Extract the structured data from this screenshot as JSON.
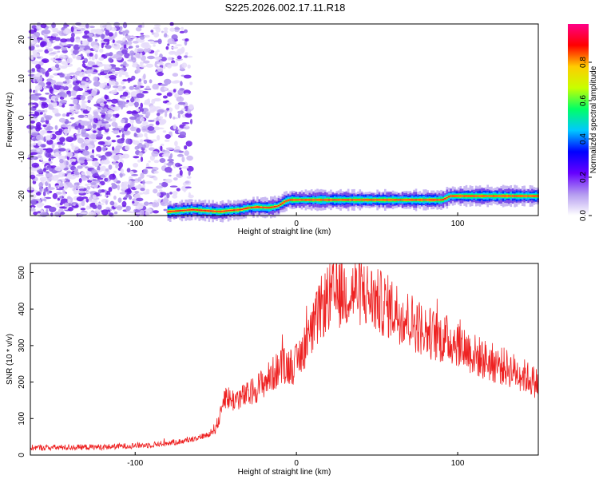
{
  "title": "S225.2026.002.17.11.R18",
  "chart_data": [
    {
      "type": "heatmap",
      "xlabel": "Height of straight line (km)",
      "ylabel": "Frequency (Hz)",
      "xlim": [
        -165,
        150
      ],
      "ylim": [
        -25,
        24
      ],
      "xticks": [
        -100,
        0,
        100
      ],
      "yticks": [
        20,
        10,
        0,
        -10,
        -20
      ],
      "colorbar": {
        "label": "Normalized spectral amplitude",
        "range": [
          0,
          1
        ],
        "ticks": [
          "0.0",
          "0.2",
          "0.4",
          "0.6",
          "0.8"
        ],
        "tick_values": [
          0.0,
          0.2,
          0.4,
          0.6,
          0.8
        ],
        "colors": [
          "#ffffff",
          "#b49bf0",
          "#6600ff",
          "#0000ff",
          "#00c8ff",
          "#00ff66",
          "#c8ff00",
          "#ffcc00",
          "#ff0000",
          "#ff0088"
        ]
      },
      "ridge": {
        "x": [
          -80,
          -65,
          -55,
          -48,
          -42,
          -35,
          -30,
          -25,
          -18,
          -12,
          -8,
          -5,
          0,
          10,
          30,
          60,
          90,
          95,
          100,
          150
        ],
        "y": [
          -24,
          -23.5,
          -23.8,
          -24,
          -23.7,
          -23.5,
          -23,
          -22.8,
          -23,
          -22.6,
          -21.5,
          -21,
          -21,
          -21,
          -21,
          -21,
          -21,
          -20,
          -20,
          -20
        ]
      }
    },
    {
      "type": "line",
      "xlabel": "Height of straight line (km)",
      "ylabel": "SNR (10 * v/v)",
      "xlim": [
        -165,
        150
      ],
      "ylim": [
        0,
        525
      ],
      "xticks": [
        -100,
        0,
        100
      ],
      "yticks": [
        0,
        100,
        200,
        300,
        400,
        500
      ],
      "series_color": "#ee2222",
      "envelope": {
        "x": [
          -165,
          -120,
          -90,
          -70,
          -55,
          -50,
          -47,
          -45,
          -40,
          -30,
          -20,
          -10,
          0,
          5,
          10,
          15,
          20,
          25,
          30,
          40,
          50,
          60,
          70,
          80,
          90,
          100,
          110,
          120,
          130,
          140,
          150
        ],
        "y": [
          20,
          22,
          28,
          38,
          55,
          75,
          110,
          165,
          150,
          165,
          200,
          240,
          250,
          300,
          340,
          400,
          430,
          440,
          445,
          450,
          420,
          400,
          370,
          340,
          320,
          310,
          275,
          255,
          240,
          220,
          195
        ]
      }
    }
  ]
}
